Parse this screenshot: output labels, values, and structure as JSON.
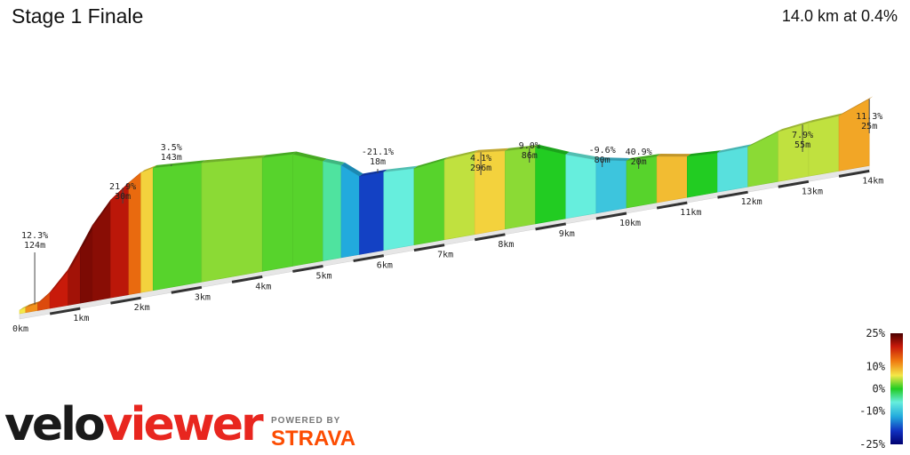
{
  "header": {
    "title": "Stage 1 Finale",
    "summary": "14.0 km at 0.4%"
  },
  "branding": {
    "logo_velo": "velo",
    "logo_viewer": "viewer",
    "powered_by": "POWERED BY",
    "strava": "STRAVA"
  },
  "colors": {
    "accent_red": "#e8261f",
    "strava_orange": "#fc4c02"
  },
  "chart_data": {
    "type": "area",
    "xlabel": "",
    "ylabel": "",
    "distance_ticks": [
      "0km",
      "1km",
      "2km",
      "3km",
      "4km",
      "5km",
      "6km",
      "7km",
      "8km",
      "9km",
      "10km",
      "11km",
      "12km",
      "13km",
      "14km"
    ],
    "elevation_profile_km": [
      0,
      0.1,
      0.3,
      0.5,
      0.8,
      1.0,
      1.2,
      1.5,
      1.8,
      2.0,
      2.2,
      3.0,
      4.0,
      4.5,
      5.0,
      5.3,
      5.6,
      6.0,
      6.5,
      7.0,
      7.5,
      8.0,
      8.5,
      9.0,
      9.5,
      10.0,
      10.5,
      11.0,
      11.5,
      12.0,
      12.5,
      13.0,
      13.5,
      14.0
    ],
    "gradient_color_scale": {
      "labels": [
        "25%",
        "10%",
        "0%",
        "-10%",
        "-25%"
      ],
      "values": [
        25,
        10,
        0,
        -10,
        -25
      ]
    },
    "segments_gradient_pct": [
      4,
      8,
      12,
      15,
      18,
      21,
      20,
      16,
      10,
      5,
      1,
      2,
      1,
      1,
      -2,
      -8,
      -14,
      -3,
      1,
      3,
      5,
      2,
      0,
      -3,
      -6,
      1,
      6,
      0,
      -4,
      2,
      3,
      3,
      7,
      11
    ],
    "annotations": [
      {
        "label": "12.3%",
        "sub": "124m"
      },
      {
        "label": "21.9%",
        "sub": "30m"
      },
      {
        "label": "3.5%",
        "sub": "143m"
      },
      {
        "label": "-21.1%",
        "sub": "18m"
      },
      {
        "label": "4.1%",
        "sub": "296m"
      },
      {
        "label": "9.0%",
        "sub": "86m"
      },
      {
        "label": "-9.6%",
        "sub": "80m"
      },
      {
        "label": "40.9%",
        "sub": "20m"
      },
      {
        "label": "7.9%",
        "sub": "55m"
      },
      {
        "label": "11.3%",
        "sub": "25m"
      }
    ]
  }
}
